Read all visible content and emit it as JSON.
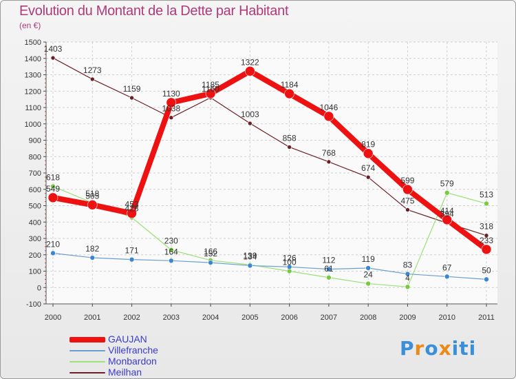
{
  "title": "Evolution du Montant de la Dette par Habitant",
  "unit_label": "(en €)",
  "brand": {
    "parts": [
      "P",
      "r",
      "o",
      "x",
      "i",
      "t",
      "i"
    ],
    "colors": [
      "#3a8fd8",
      "#e98a1b",
      "#3a8fd8",
      "#e98a1b",
      "#3a8fd8",
      "#3a8fd8",
      "#3a8fd8"
    ]
  },
  "chart_data": {
    "type": "line",
    "x": [
      "2000",
      "2001",
      "2002",
      "2003",
      "2004",
      "2005",
      "2006",
      "2007",
      "2008",
      "2009",
      "2010",
      "2011"
    ],
    "ylim": [
      -100,
      1500
    ],
    "yticks": [
      -100,
      0,
      100,
      200,
      300,
      400,
      500,
      600,
      700,
      800,
      900,
      1000,
      1100,
      1200,
      1300,
      1400,
      1500
    ],
    "grid": true,
    "legend_position": "bottom-left",
    "series": [
      {
        "name": "Meilhan",
        "color": "#6b1f24",
        "marker": "#6b1f24",
        "width": 1.2,
        "point": 3,
        "values": [
          1403,
          1273,
          1159,
          1038,
          1160,
          1003,
          858,
          768,
          674,
          475,
          394,
          318
        ],
        "labels": [
          "1403",
          "1273",
          "1159",
          "1038",
          "1160",
          "1003",
          "858",
          "768",
          "674",
          "475",
          "394",
          "318"
        ]
      },
      {
        "name": "Monbardon",
        "color": "#9be07a",
        "marker": "#7ac943",
        "width": 1.2,
        "point": 3.5,
        "values": [
          618,
          518,
          428,
          230,
          166,
          139,
          100,
          61,
          24,
          4,
          579,
          513
        ],
        "labels": [
          "618",
          "518",
          "428",
          "230",
          "166",
          "139",
          "100",
          "61",
          "24",
          "4",
          "579",
          "513"
        ]
      },
      {
        "name": "Villefranche",
        "color": "#6a9ed0",
        "marker": "#3b86cf",
        "width": 1.2,
        "point": 3.5,
        "values": [
          210,
          182,
          171,
          164,
          152,
          134,
          126,
          112,
          119,
          83,
          67,
          50
        ],
        "labels": [
          "210",
          "182",
          "171",
          "164",
          "152",
          "134",
          "126",
          "112",
          "119",
          "83",
          "67",
          "50"
        ]
      },
      {
        "name": "GAUJAN",
        "color": "#ee1111",
        "marker": "#ee1111",
        "width": 8,
        "point": 7,
        "values": [
          549,
          505,
          453,
          1130,
          1185,
          1322,
          1184,
          1046,
          819,
          599,
          414,
          233
        ],
        "labels": [
          "549",
          "505",
          "453",
          "1130",
          "1185",
          "1322",
          "1184",
          "1046",
          "819",
          "599",
          "414",
          "233"
        ]
      }
    ]
  },
  "legend": [
    {
      "name": "GAUJAN",
      "color": "#ee1111",
      "thickness": 8
    },
    {
      "name": "Villefranche",
      "color": "#6a9ed0",
      "thickness": 2
    },
    {
      "name": "Monbardon",
      "color": "#9be07a",
      "thickness": 2
    },
    {
      "name": "Meilhan",
      "color": "#6b1f24",
      "thickness": 2
    }
  ]
}
